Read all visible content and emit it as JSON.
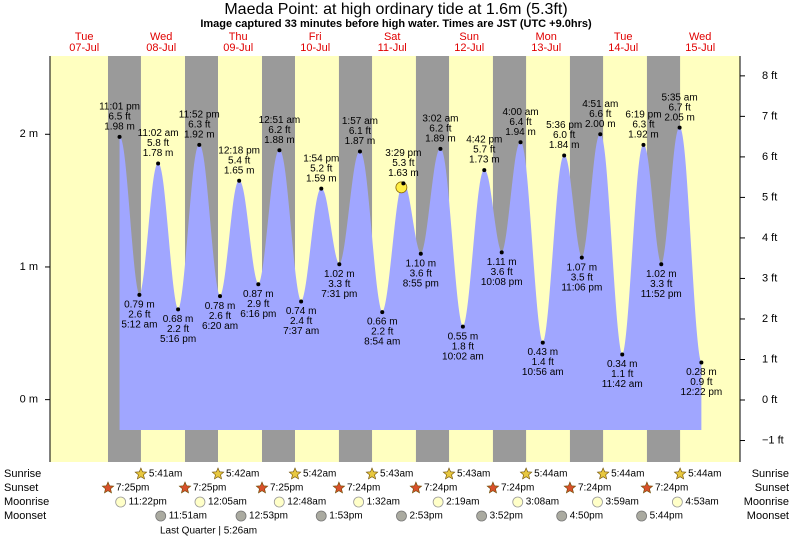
{
  "chart_data": {
    "type": "tide",
    "title": "Maeda Point: at high  ordinary tide at 1.6m (5.3ft)",
    "subtitle": "Image captured 33 minutes before high water. Times are JST (UTC +9.0hrs)",
    "days": [
      "Tue",
      "Wed",
      "Thu",
      "Fri",
      "Sat",
      "Sun",
      "Mon",
      "Tue",
      "Wed"
    ],
    "dates": [
      "07-Jul",
      "08-Jul",
      "09-Jul",
      "10-Jul",
      "11-Jul",
      "12-Jul",
      "13-Jul",
      "14-Jul",
      "15-Jul"
    ],
    "ylim": [
      -0.47,
      2.59
    ],
    "yticks": [
      {
        "value": 0,
        "label": "0 m"
      },
      {
        "value": 1,
        "label": "1 m"
      },
      {
        "value": 2,
        "label": "2 m"
      }
    ],
    "y2lim": [
      -1.53,
      8.49
    ],
    "y2ticks": [
      {
        "value": -1,
        "label": "−1 ft"
      },
      {
        "value": 0,
        "label": "0 ft"
      },
      {
        "value": 1,
        "label": "1 ft"
      },
      {
        "value": 2,
        "label": "2 ft"
      },
      {
        "value": 3,
        "label": "3 ft"
      },
      {
        "value": 4,
        "label": "4 ft"
      },
      {
        "value": 5,
        "label": "5 ft"
      },
      {
        "value": 6,
        "label": "6 ft"
      },
      {
        "value": 7,
        "label": "7 ft"
      },
      {
        "value": 8,
        "label": "8 ft"
      }
    ],
    "tides": {
      "times": [
        "11:01 pm",
        "5:12 am",
        "11:02 am",
        "5:16 pm",
        "11:52 pm",
        "6:20 am",
        "12:18 pm",
        "6:16 pm",
        "12:51 am",
        "7:37 am",
        "1:54 pm",
        "7:31 pm",
        "1:57 am",
        "8:54 am",
        "3:29 pm",
        "8:55 pm",
        "3:02 am",
        "10:02 am",
        "4:42 pm",
        "10:08 pm",
        "4:00 am",
        "10:56 am",
        "5:36 pm",
        "11:06 pm",
        "4:51 am",
        "11:42 am",
        "6:19 pm",
        "11:52 pm",
        "5:35 am",
        "12:22 pm"
      ],
      "values": [
        1.98,
        0.79,
        1.78,
        0.68,
        1.92,
        0.78,
        1.65,
        0.87,
        1.88,
        0.74,
        1.59,
        1.02,
        1.87,
        0.66,
        1.63,
        1.1,
        1.89,
        0.55,
        1.73,
        1.11,
        1.94,
        0.43,
        1.84,
        1.07,
        2.0,
        0.34,
        1.92,
        1.02,
        2.05,
        0.28
      ],
      "value_labels": [
        "1.98 m",
        "0.79 m",
        "1.78 m",
        "0.68 m",
        "1.92 m",
        "0.78 m",
        "1.65 m",
        "0.87 m",
        "1.88 m",
        "0.74 m",
        "1.59 m",
        "1.02 m",
        "1.87 m",
        "0.66 m",
        "1.63 m",
        "1.10 m",
        "1.89 m",
        "0.55 m",
        "1.73 m",
        "1.11 m",
        "1.94 m",
        "0.43 m",
        "1.84 m",
        "1.07 m",
        "2.00 m",
        "0.34 m",
        "1.92 m",
        "1.02 m",
        "2.05 m",
        "0.28 m"
      ],
      "value_labels_ft": [
        "6.5 ft",
        "2.6 ft",
        "5.8 ft",
        "2.2 ft",
        "6.3 ft",
        "2.6 ft",
        "5.4 ft",
        "2.9 ft",
        "6.2 ft",
        "2.4 ft",
        "5.2 ft",
        "3.3 ft",
        "6.1 ft",
        "2.2 ft",
        "5.3 ft",
        "3.6 ft",
        "6.2 ft",
        "1.8 ft",
        "5.7 ft",
        "3.6 ft",
        "6.4 ft",
        "1.4 ft",
        "6.0 ft",
        "3.5 ft",
        "6.6 ft",
        "1.1 ft",
        "6.3 ft",
        "3.3 ft",
        "6.7 ft",
        "0.9 ft"
      ]
    },
    "colors": {
      "day": "#ffffc0",
      "night": "#9a9a9a",
      "water": "#a0a6ff"
    },
    "rows": [
      {
        "name": "Sunrise",
        "times": [
          null,
          "5:41am",
          "5:42am",
          "5:42am",
          "5:43am",
          "5:43am",
          "5:44am",
          "5:44am",
          "5:44am"
        ]
      },
      {
        "name": "Sunset",
        "times": [
          "7:25pm",
          "7:25pm",
          "7:25pm",
          "7:24pm",
          "7:24pm",
          "7:24pm",
          "7:24pm",
          "7:24pm",
          null
        ]
      },
      {
        "name": "Moonrise",
        "times": [
          "11:22pm",
          null,
          "12:05am",
          "12:48am",
          "1:32am",
          "2:19am",
          "3:08am",
          "3:59am",
          "4:53am"
        ]
      },
      {
        "name": "Moonset",
        "times": [
          null,
          "11:51am",
          "12:53pm",
          "1:53pm",
          "2:53pm",
          "3:52pm",
          "4:50pm",
          "5:44pm",
          null
        ]
      }
    ],
    "moon_phase": "Last Quarter | 5:26am"
  }
}
